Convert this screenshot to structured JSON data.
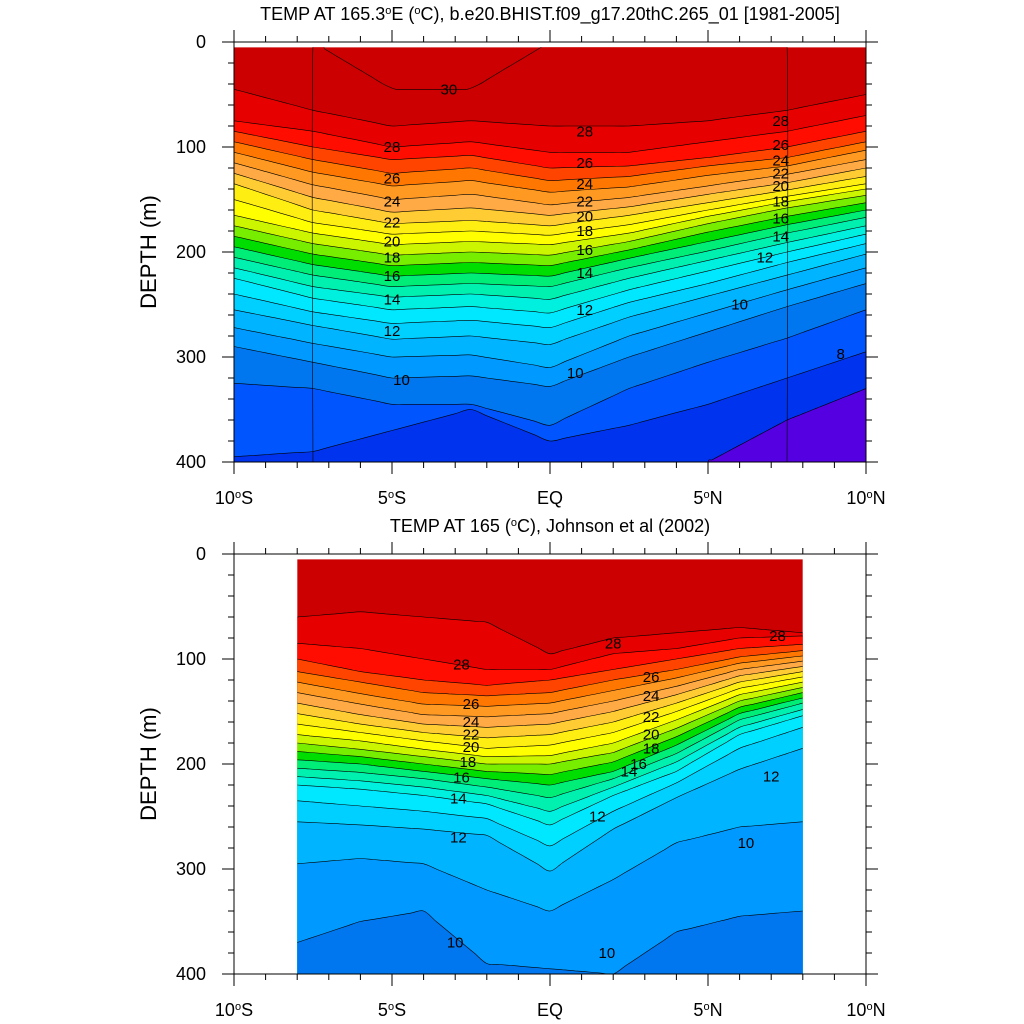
{
  "chart_data": [
    {
      "type": "contour",
      "title_parts": [
        "TEMP AT 165.3",
        "o",
        "E (",
        "o",
        "C), b.e20.BHIST.f09_g17.20thC.265_01 [1981-2005]"
      ],
      "ylabel": "DEPTH (m)",
      "xlim": [
        -10,
        10
      ],
      "ylim": [
        0,
        400
      ],
      "x_ticks": [
        {
          "value": -10,
          "parts": [
            "10",
            "o",
            "S"
          ]
        },
        {
          "value": -5,
          "parts": [
            "5",
            "o",
            "S"
          ]
        },
        {
          "value": 0,
          "parts": [
            "EQ"
          ]
        },
        {
          "value": 5,
          "parts": [
            "5",
            "o",
            "N"
          ]
        },
        {
          "value": 10,
          "parts": [
            "10",
            "o",
            "N"
          ]
        }
      ],
      "y_ticks": [
        {
          "value": 0,
          "label": "0"
        },
        {
          "value": 100,
          "label": "100"
        },
        {
          "value": 200,
          "label": "200"
        },
        {
          "value": 300,
          "label": "300"
        },
        {
          "value": 400,
          "label": "400"
        }
      ],
      "data_extent": {
        "x": [
          -10,
          10
        ],
        "depth": [
          5,
          400
        ]
      },
      "x_nodes": [
        -10,
        -7.5,
        -5,
        -2.5,
        0,
        2.5,
        5,
        7.5,
        10
      ],
      "isotherms": [
        {
          "temp": 30,
          "depths": [
            null,
            0,
            45,
            45,
            0,
            0,
            0,
            0,
            null
          ]
        },
        {
          "temp": 29,
          "depths": [
            45,
            65,
            80,
            75,
            80,
            80,
            75,
            65,
            50
          ]
        },
        {
          "temp": 28,
          "depths": [
            75,
            85,
            100,
            95,
            105,
            105,
            95,
            85,
            70
          ]
        },
        {
          "temp": 27,
          "depths": [
            85,
            100,
            112,
            108,
            120,
            118,
            110,
            100,
            85
          ]
        },
        {
          "temp": 26,
          "depths": [
            95,
            112,
            125,
            120,
            132,
            128,
            118,
            110,
            95
          ]
        },
        {
          "temp": 25,
          "depths": [
            105,
            124,
            137,
            132,
            143,
            138,
            127,
            118,
            103
          ]
        },
        {
          "temp": 24,
          "depths": [
            115,
            136,
            150,
            145,
            155,
            148,
            137,
            126,
            112
          ]
        },
        {
          "temp": 23,
          "depths": [
            125,
            148,
            162,
            158,
            165,
            157,
            145,
            134,
            120
          ]
        },
        {
          "temp": 22,
          "depths": [
            135,
            160,
            173,
            170,
            175,
            165,
            153,
            141,
            128
          ]
        },
        {
          "temp": 21,
          "depths": [
            150,
            172,
            183,
            180,
            184,
            174,
            160,
            147,
            135
          ]
        },
        {
          "temp": 20,
          "depths": [
            165,
            182,
            193,
            190,
            193,
            182,
            166,
            152,
            140
          ]
        },
        {
          "temp": 19,
          "depths": [
            175,
            192,
            203,
            200,
            203,
            190,
            173,
            158,
            146
          ]
        },
        {
          "temp": 18,
          "depths": [
            185,
            202,
            213,
            210,
            213,
            198,
            181,
            166,
            153
          ]
        },
        {
          "temp": 17,
          "depths": [
            195,
            212,
            223,
            220,
            223,
            206,
            190,
            174,
            160
          ]
        },
        {
          "temp": 16,
          "depths": [
            205,
            222,
            233,
            230,
            233,
            215,
            199,
            182,
            167
          ]
        },
        {
          "temp": 15,
          "depths": [
            215,
            233,
            243,
            240,
            245,
            225,
            208,
            191,
            175
          ]
        },
        {
          "temp": 14,
          "depths": [
            225,
            244,
            255,
            252,
            258,
            236,
            218,
            200,
            183
          ]
        },
        {
          "temp": 13,
          "depths": [
            240,
            257,
            268,
            265,
            272,
            248,
            230,
            210,
            192
          ]
        },
        {
          "temp": 12,
          "depths": [
            255,
            270,
            283,
            280,
            288,
            262,
            242,
            222,
            202
          ]
        },
        {
          "temp": 11,
          "depths": [
            272,
            287,
            300,
            298,
            310,
            280,
            258,
            236,
            215
          ]
        },
        {
          "temp": 10,
          "depths": [
            290,
            305,
            320,
            318,
            328,
            300,
            276,
            252,
            230
          ]
        },
        {
          "temp": 9,
          "depths": [
            325,
            330,
            345,
            345,
            365,
            330,
            305,
            282,
            255
          ]
        },
        {
          "temp": 8,
          "depths": [
            395,
            390,
            370,
            350,
            380,
            365,
            345,
            320,
            295
          ]
        },
        {
          "temp": 7,
          "depths": [
            null,
            null,
            null,
            null,
            null,
            null,
            400,
            360,
            330
          ]
        }
      ],
      "contour_labels": [
        {
          "text": "30",
          "x": -3.2,
          "depth": 45
        },
        {
          "text": "28",
          "x": -5,
          "depth": 100
        },
        {
          "text": "28",
          "x": 1.1,
          "depth": 85
        },
        {
          "text": "28",
          "x": 7.3,
          "depth": 75
        },
        {
          "text": "26",
          "x": -5,
          "depth": 130
        },
        {
          "text": "26",
          "x": 1.1,
          "depth": 115
        },
        {
          "text": "26",
          "x": 7.3,
          "depth": 98
        },
        {
          "text": "24",
          "x": -5,
          "depth": 152
        },
        {
          "text": "24",
          "x": 1.1,
          "depth": 135
        },
        {
          "text": "24",
          "x": 7.3,
          "depth": 113
        },
        {
          "text": "22",
          "x": -5,
          "depth": 172
        },
        {
          "text": "22",
          "x": 1.1,
          "depth": 152
        },
        {
          "text": "22",
          "x": 7.3,
          "depth": 125
        },
        {
          "text": "20",
          "x": -5,
          "depth": 190
        },
        {
          "text": "20",
          "x": 1.1,
          "depth": 166
        },
        {
          "text": "20",
          "x": 7.3,
          "depth": 137
        },
        {
          "text": "18",
          "x": -5,
          "depth": 205
        },
        {
          "text": "18",
          "x": 1.1,
          "depth": 180
        },
        {
          "text": "18",
          "x": 7.3,
          "depth": 152
        },
        {
          "text": "16",
          "x": -5,
          "depth": 223
        },
        {
          "text": "16",
          "x": 1.1,
          "depth": 198
        },
        {
          "text": "16",
          "x": 7.3,
          "depth": 168
        },
        {
          "text": "14",
          "x": -5,
          "depth": 245
        },
        {
          "text": "14",
          "x": 1.1,
          "depth": 220
        },
        {
          "text": "14",
          "x": 7.3,
          "depth": 185
        },
        {
          "text": "12",
          "x": -5,
          "depth": 275
        },
        {
          "text": "12",
          "x": 1.1,
          "depth": 255
        },
        {
          "text": "12",
          "x": 6.8,
          "depth": 205
        },
        {
          "text": "10",
          "x": -4.7,
          "depth": 322
        },
        {
          "text": "10",
          "x": 0.8,
          "depth": 315
        },
        {
          "text": "10",
          "x": 6.0,
          "depth": 250
        },
        {
          "text": "8",
          "x": 9.2,
          "depth": 297
        }
      ]
    },
    {
      "type": "contour",
      "title_parts": [
        "TEMP AT 165 (",
        "o",
        "C), Johnson et al (2002)"
      ],
      "ylabel": "DEPTH (m)",
      "xlim": [
        -10,
        10
      ],
      "ylim": [
        0,
        400
      ],
      "x_ticks": [
        {
          "value": -10,
          "parts": [
            "10",
            "o",
            "S"
          ]
        },
        {
          "value": -5,
          "parts": [
            "5",
            "o",
            "S"
          ]
        },
        {
          "value": 0,
          "parts": [
            "EQ"
          ]
        },
        {
          "value": 5,
          "parts": [
            "5",
            "o",
            "N"
          ]
        },
        {
          "value": 10,
          "parts": [
            "10",
            "o",
            "N"
          ]
        }
      ],
      "y_ticks": [
        {
          "value": 0,
          "label": "0"
        },
        {
          "value": 100,
          "label": "100"
        },
        {
          "value": 200,
          "label": "200"
        },
        {
          "value": 300,
          "label": "300"
        },
        {
          "value": 400,
          "label": "400"
        }
      ],
      "data_extent": {
        "x": [
          -8,
          8
        ],
        "depth": [
          5,
          400
        ]
      },
      "x_nodes": [
        -8,
        -6,
        -4,
        -2,
        0,
        2,
        4,
        6,
        8
      ],
      "isotherms": [
        {
          "temp": 29,
          "depths": [
            60,
            55,
            60,
            65,
            95,
            80,
            75,
            70,
            75
          ]
        },
        {
          "temp": 28,
          "depths": [
            85,
            90,
            100,
            110,
            110,
            95,
            90,
            80,
            78
          ]
        },
        {
          "temp": 27,
          "depths": [
            100,
            112,
            120,
            125,
            120,
            110,
            100,
            90,
            86
          ]
        },
        {
          "temp": 26,
          "depths": [
            112,
            122,
            132,
            135,
            132,
            120,
            110,
            98,
            92
          ]
        },
        {
          "temp": 25,
          "depths": [
            122,
            133,
            143,
            145,
            142,
            130,
            118,
            104,
            97
          ]
        },
        {
          "temp": 24,
          "depths": [
            132,
            143,
            153,
            155,
            152,
            140,
            126,
            110,
            102
          ]
        },
        {
          "temp": 23,
          "depths": [
            142,
            153,
            162,
            165,
            162,
            150,
            134,
            116,
            107
          ]
        },
        {
          "temp": 22,
          "depths": [
            152,
            162,
            170,
            175,
            172,
            160,
            142,
            122,
            112
          ]
        },
        {
          "temp": 21,
          "depths": [
            162,
            170,
            178,
            185,
            182,
            170,
            150,
            128,
            117
          ]
        },
        {
          "temp": 20,
          "depths": [
            172,
            178,
            186,
            193,
            192,
            180,
            158,
            134,
            122
          ]
        },
        {
          "temp": 19,
          "depths": [
            180,
            186,
            193,
            200,
            200,
            189,
            166,
            140,
            127
          ]
        },
        {
          "temp": 18,
          "depths": [
            188,
            193,
            200,
            207,
            210,
            198,
            174,
            146,
            132
          ]
        },
        {
          "temp": 17,
          "depths": [
            196,
            200,
            207,
            214,
            220,
            207,
            182,
            152,
            137
          ]
        },
        {
          "temp": 16,
          "depths": [
            204,
            208,
            214,
            222,
            232,
            214,
            190,
            158,
            142
          ]
        },
        {
          "temp": 15,
          "depths": [
            212,
            216,
            222,
            230,
            245,
            222,
            198,
            165,
            148
          ]
        },
        {
          "temp": 14,
          "depths": [
            220,
            224,
            230,
            238,
            258,
            230,
            207,
            172,
            154
          ]
        },
        {
          "temp": 13,
          "depths": [
            235,
            240,
            245,
            252,
            278,
            245,
            218,
            185,
            165
          ]
        },
        {
          "temp": 12,
          "depths": [
            255,
            258,
            262,
            268,
            302,
            262,
            232,
            205,
            185
          ]
        },
        {
          "temp": 11,
          "depths": [
            295,
            290,
            295,
            320,
            340,
            310,
            275,
            260,
            255
          ]
        },
        {
          "temp": 10,
          "depths": [
            370,
            350,
            340,
            390,
            395,
            400,
            360,
            345,
            340
          ]
        },
        {
          "temp": 9,
          "depths": [
            null,
            null,
            null,
            null,
            null,
            null,
            410,
            400,
            400
          ]
        }
      ],
      "contour_labels": [
        {
          "text": "28",
          "x": -2.8,
          "depth": 105
        },
        {
          "text": "28",
          "x": 2.0,
          "depth": 85
        },
        {
          "text": "28",
          "x": 7.2,
          "depth": 78
        },
        {
          "text": "26",
          "x": -2.5,
          "depth": 143
        },
        {
          "text": "26",
          "x": 3.2,
          "depth": 117
        },
        {
          "text": "24",
          "x": -2.5,
          "depth": 160
        },
        {
          "text": "24",
          "x": 3.2,
          "depth": 135
        },
        {
          "text": "22",
          "x": -2.5,
          "depth": 172
        },
        {
          "text": "22",
          "x": 3.2,
          "depth": 155
        },
        {
          "text": "20",
          "x": -2.5,
          "depth": 184
        },
        {
          "text": "20",
          "x": 3.2,
          "depth": 172
        },
        {
          "text": "18",
          "x": -2.6,
          "depth": 198
        },
        {
          "text": "18",
          "x": 3.2,
          "depth": 185
        },
        {
          "text": "16",
          "x": -2.8,
          "depth": 213
        },
        {
          "text": "16",
          "x": 2.8,
          "depth": 200
        },
        {
          "text": "14",
          "x": -2.9,
          "depth": 233
        },
        {
          "text": "14",
          "x": 2.5,
          "depth": 207
        },
        {
          "text": "12",
          "x": -2.9,
          "depth": 270
        },
        {
          "text": "12",
          "x": 1.5,
          "depth": 250
        },
        {
          "text": "12",
          "x": 7.0,
          "depth": 212
        },
        {
          "text": "10",
          "x": -3.0,
          "depth": 370
        },
        {
          "text": "10",
          "x": 1.8,
          "depth": 380
        },
        {
          "text": "10",
          "x": 6.2,
          "depth": 275
        }
      ]
    }
  ]
}
